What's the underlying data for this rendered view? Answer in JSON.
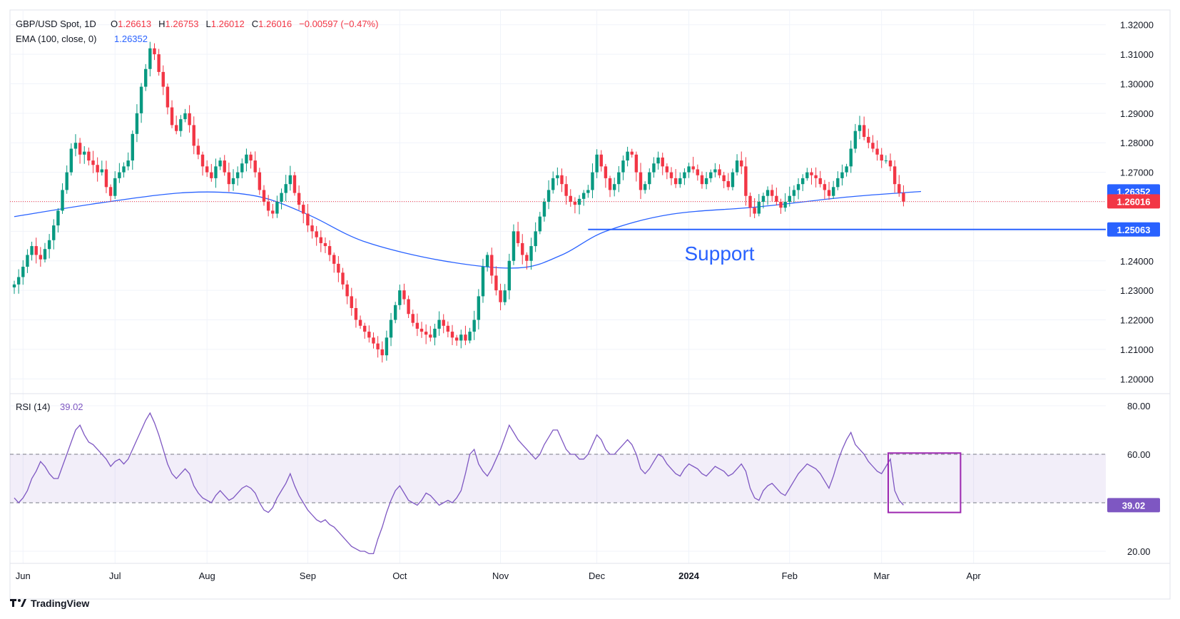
{
  "header": {
    "symbol": "GBP/USD Spot, 1D",
    "ohlc": [
      {
        "label": "O",
        "value": "1.26613"
      },
      {
        "label": "H",
        "value": "1.26753"
      },
      {
        "label": "L",
        "value": "1.26012"
      },
      {
        "label": "C",
        "value": "1.26016"
      }
    ],
    "change": "−0.00597 (−0.47%)",
    "ema_label": "EMA (100, close, 0)",
    "ema_value": "1.26352",
    "rsi_label": "RSI (14)",
    "rsi_value": "39.02"
  },
  "colors": {
    "up": "#089981",
    "down": "#f23645",
    "ema": "#2962ff",
    "rsi": "#7e57c2",
    "support": "#2962ff",
    "box": "#9c27b0",
    "last_price": "#f23645",
    "grid": "#f0f3fa",
    "text": "#131722"
  },
  "annotation": {
    "support_label": "Support"
  },
  "branding": {
    "text": "TradingView"
  },
  "chart_data": [
    {
      "type": "candlestick",
      "title": "GBP/USD Spot, 1D",
      "ylim": [
        1.195,
        1.325
      ],
      "y_ticks": [
        "1.32000",
        "1.31000",
        "1.30000",
        "1.29000",
        "1.28000",
        "1.27000",
        "1.26000",
        "1.25000",
        "1.24000",
        "1.23000",
        "1.22000",
        "1.21000",
        "1.20000"
      ],
      "x_ticks": [
        {
          "label": "Jun",
          "index": 2
        },
        {
          "label": "Jul",
          "index": 23
        },
        {
          "label": "Aug",
          "index": 44
        },
        {
          "label": "Sep",
          "index": 67
        },
        {
          "label": "Oct",
          "index": 88
        },
        {
          "label": "Nov",
          "index": 111
        },
        {
          "label": "Dec",
          "index": 133
        },
        {
          "label": "2024",
          "index": 154
        },
        {
          "label": "Feb",
          "index": 177
        },
        {
          "label": "Mar",
          "index": 198
        },
        {
          "label": "Apr",
          "index": 219
        }
      ],
      "ohlc_closes": [
        1.232,
        1.2345,
        1.238,
        1.242,
        1.245,
        1.242,
        1.2405,
        1.244,
        1.247,
        1.252,
        1.257,
        1.264,
        1.27,
        1.278,
        1.28,
        1.276,
        1.277,
        1.274,
        1.2725,
        1.27,
        1.271,
        1.265,
        1.262,
        1.268,
        1.27,
        1.272,
        1.274,
        1.283,
        1.29,
        1.299,
        1.305,
        1.312,
        1.31,
        1.304,
        1.299,
        1.292,
        1.286,
        1.284,
        1.288,
        1.29,
        1.286,
        1.279,
        1.276,
        1.272,
        1.27,
        1.268,
        1.272,
        1.274,
        1.27,
        1.266,
        1.268,
        1.27,
        1.273,
        1.276,
        1.274,
        1.27,
        1.264,
        1.26,
        1.257,
        1.256,
        1.26,
        1.263,
        1.266,
        1.269,
        1.263,
        1.259,
        1.256,
        1.252,
        1.25,
        1.248,
        1.246,
        1.245,
        1.242,
        1.239,
        1.236,
        1.232,
        1.228,
        1.224,
        1.22,
        1.218,
        1.216,
        1.214,
        1.212,
        1.21,
        1.208,
        1.214,
        1.22,
        1.225,
        1.23,
        1.227,
        1.222,
        1.219,
        1.217,
        1.216,
        1.215,
        1.214,
        1.217,
        1.22,
        1.218,
        1.216,
        1.214,
        1.213,
        1.215,
        1.213,
        1.216,
        1.22,
        1.228,
        1.238,
        1.242,
        1.235,
        1.23,
        1.226,
        1.23,
        1.24,
        1.25,
        1.246,
        1.242,
        1.24,
        1.245,
        1.25,
        1.255,
        1.26,
        1.264,
        1.268,
        1.269,
        1.266,
        1.262,
        1.26,
        1.259,
        1.261,
        1.263,
        1.264,
        1.27,
        1.276,
        1.272,
        1.268,
        1.264,
        1.266,
        1.27,
        1.274,
        1.277,
        1.276,
        1.27,
        1.264,
        1.266,
        1.27,
        1.273,
        1.275,
        1.272,
        1.27,
        1.268,
        1.266,
        1.268,
        1.27,
        1.272,
        1.271,
        1.269,
        1.266,
        1.268,
        1.27,
        1.271,
        1.269,
        1.267,
        1.265,
        1.27,
        1.274,
        1.272,
        1.262,
        1.258,
        1.256,
        1.26,
        1.262,
        1.264,
        1.262,
        1.26,
        1.258,
        1.26,
        1.262,
        1.264,
        1.266,
        1.268,
        1.27,
        1.269,
        1.268,
        1.266,
        1.264,
        1.262,
        1.265,
        1.268,
        1.27,
        1.272,
        1.278,
        1.284,
        1.286,
        1.282,
        1.28,
        1.278,
        1.276,
        1.274,
        1.274,
        1.272,
        1.266,
        1.263,
        1.2601
      ],
      "series": [
        {
          "name": "EMA (100, close, 0)",
          "start_index": 0,
          "values": [
            1.255,
            1.2597,
            1.2632,
            1.262,
            1.2557,
            1.2465,
            1.24,
            1.2376,
            1.242,
            1.25,
            1.2558,
            1.2583,
            1.2616,
            1.2635
          ]
        },
        {
          "name": "Support",
          "value": 1.25063,
          "from_index": 131
        }
      ],
      "ema_knot_indices": [
        0,
        20,
        40,
        55,
        67,
        80,
        98,
        115,
        125,
        135,
        150,
        170,
        190,
        207
      ],
      "price_labels": [
        {
          "value": "1.26352",
          "price": 1.26352,
          "color": "#2962ff"
        },
        {
          "value": "1.26016",
          "price": 1.26016,
          "color": "#f23645"
        },
        {
          "value": "1.25063",
          "price": 1.25063,
          "color": "#2962ff"
        }
      ],
      "support_label_position": {
        "index": 161,
        "price": 1.2426
      }
    },
    {
      "type": "line",
      "title": "RSI (14)",
      "ylim": [
        15,
        85
      ],
      "y_ticks": [
        "80.00",
        "60.00",
        "20.00"
      ],
      "bands": [
        40,
        60
      ],
      "values": [
        42,
        40,
        42,
        45,
        50,
        53,
        57,
        55,
        52,
        50,
        50,
        55,
        60,
        65,
        70,
        72,
        68,
        65,
        64,
        62,
        60,
        58,
        55,
        57,
        58,
        56,
        58,
        62,
        66,
        70,
        74,
        77,
        73,
        68,
        62,
        56,
        52,
        50,
        52,
        54,
        52,
        47,
        44,
        42,
        41,
        40,
        43,
        45,
        43,
        41,
        42,
        44,
        46,
        47,
        46,
        44,
        40,
        37,
        36,
        38,
        42,
        45,
        48,
        52,
        47,
        43,
        40,
        37,
        35,
        33,
        32,
        33,
        31,
        30,
        28,
        26,
        24,
        22,
        21,
        20,
        20,
        19,
        19,
        25,
        30,
        36,
        41,
        45,
        47,
        44,
        41,
        40,
        39,
        41,
        44,
        43,
        41,
        39,
        40,
        41,
        40,
        42,
        45,
        52,
        60,
        62,
        56,
        53,
        51,
        54,
        58,
        62,
        67,
        72,
        69,
        66,
        64,
        62,
        60,
        58,
        60,
        64,
        67,
        70,
        70,
        66,
        62,
        60,
        60,
        58,
        58,
        60,
        64,
        68,
        66,
        62,
        60,
        60,
        62,
        64,
        66,
        64,
        60,
        54,
        52,
        54,
        57,
        60,
        59,
        56,
        54,
        52,
        51,
        54,
        56,
        55,
        54,
        52,
        51,
        53,
        55,
        54,
        53,
        51,
        52,
        54,
        56,
        53,
        46,
        42,
        41,
        45,
        47,
        48,
        46,
        44,
        43,
        46,
        49,
        52,
        54,
        56,
        55,
        54,
        52,
        49,
        46,
        51,
        57,
        62,
        66,
        69,
        64,
        62,
        60,
        57,
        55,
        53,
        52,
        55,
        58,
        45,
        41,
        39.02
      ],
      "value_label": "39.02",
      "highlight_box": {
        "from_index": 200,
        "to_index": 210,
        "rsi_low": 36,
        "rsi_high": 60.5
      }
    }
  ]
}
